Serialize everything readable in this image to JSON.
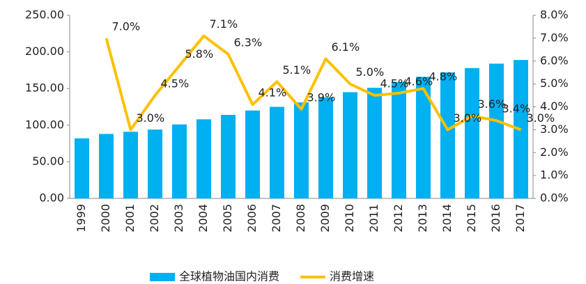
{
  "chart_data": {
    "type": "bar_line",
    "categories": [
      "1999",
      "2000",
      "2001",
      "2002",
      "2003",
      "2004",
      "2005",
      "2006",
      "2007",
      "2008",
      "2009",
      "2010",
      "2011",
      "2012",
      "2013",
      "2014",
      "2015",
      "2016",
      "2017"
    ],
    "series": [
      {
        "name": "全球植物油国内消费",
        "type": "bar",
        "color": "#00b0f0",
        "values": [
          82,
          88,
          91,
          94,
          101,
          108,
          114,
          120,
          125,
          131,
          138,
          145,
          151,
          159,
          166,
          172,
          178,
          184,
          189
        ]
      },
      {
        "name": "消费增速",
        "type": "line",
        "axis": "y2",
        "color": "#ffc000",
        "values": [
          null,
          7.0,
          3.0,
          4.5,
          5.8,
          7.1,
          6.3,
          4.1,
          5.1,
          3.9,
          6.1,
          5.0,
          4.5,
          4.6,
          4.8,
          3.0,
          3.6,
          3.4,
          3.0
        ],
        "value_labels": [
          null,
          "7.0%",
          "3.0%",
          "4.5%",
          "5.8%",
          "7.1%",
          "6.3%",
          "4.1%",
          "5.1%",
          "3.9%",
          "6.1%",
          "5.0%",
          "4.5%",
          "4.6%",
          "4.8%",
          "3.0%",
          "3.6%",
          "3.4%",
          "3.0%"
        ]
      }
    ],
    "ylim": [
      0,
      250
    ],
    "yticks": [
      {
        "value": 0,
        "label": "0.00"
      },
      {
        "value": 50,
        "label": "50.00"
      },
      {
        "value": 100,
        "label": "100.00"
      },
      {
        "value": 150,
        "label": "150.00"
      },
      {
        "value": 200,
        "label": "200.00"
      },
      {
        "value": 250,
        "label": "250.00"
      }
    ],
    "y2lim": [
      0,
      8
    ],
    "y2ticks": [
      {
        "value": 0,
        "label": "0.0%"
      },
      {
        "value": 1,
        "label": "1.0%"
      },
      {
        "value": 2,
        "label": "2.0%"
      },
      {
        "value": 3,
        "label": "3.0%"
      },
      {
        "value": 4,
        "label": "4.0%"
      },
      {
        "value": 5,
        "label": "5.0%"
      },
      {
        "value": 6,
        "label": "6.0%"
      },
      {
        "value": 7,
        "label": "7.0%"
      },
      {
        "value": 8,
        "label": "8.0%"
      }
    ],
    "legend": "bottom"
  }
}
